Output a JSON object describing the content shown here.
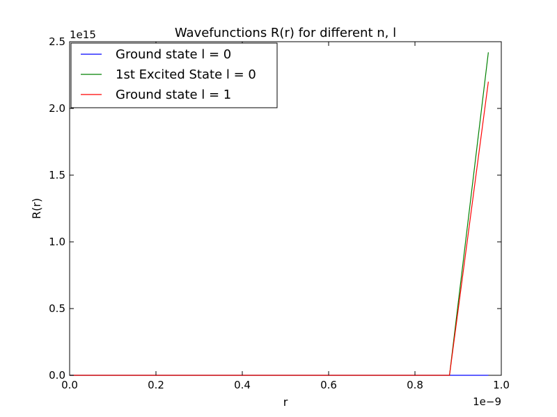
{
  "chart_data": {
    "type": "line",
    "title": "Wavefunctions R(r) for different n, l",
    "xlabel": "r",
    "ylabel": "R(r)",
    "x_offset_label": "1e−9",
    "y_offset_label": "1e15",
    "xlim": [
      0.0,
      1.0
    ],
    "ylim": [
      0.0,
      2.5
    ],
    "x_ticks": [
      "0.0",
      "0.2",
      "0.4",
      "0.6",
      "0.8",
      "1.0"
    ],
    "y_ticks": [
      "0.0",
      "0.5",
      "1.0",
      "1.5",
      "2.0",
      "2.5"
    ],
    "legend_position": "top-left",
    "grid": false,
    "series": [
      {
        "name": "Ground state l = 0",
        "color": "#0000ff",
        "x": [
          0.0,
          0.5,
          0.88,
          0.97
        ],
        "y": [
          0.0,
          0.0,
          0.0,
          0.0
        ]
      },
      {
        "name": "1st Excited State l = 0",
        "color": "#008000",
        "x": [
          0.0,
          0.5,
          0.88,
          0.97
        ],
        "y": [
          0.0,
          0.0,
          0.0,
          2.42
        ]
      },
      {
        "name": "Ground state l = 1",
        "color": "#ff0000",
        "x": [
          0.0,
          0.5,
          0.88,
          0.97
        ],
        "y": [
          0.0,
          0.0,
          0.0,
          2.2
        ]
      }
    ]
  }
}
